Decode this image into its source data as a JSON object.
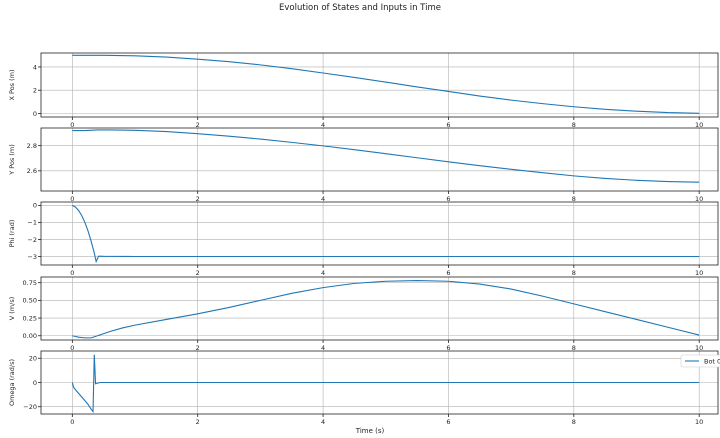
{
  "figure": {
    "title": "Evolution of States and Inputs in Time",
    "xlabel": "Time (s)",
    "legend_label": "Bot 0"
  },
  "chart_data": [
    {
      "type": "line",
      "ylabel": "X Pos (m)",
      "xlim": [
        -0.5,
        10.3
      ],
      "ylim": [
        -0.3,
        5.2
      ],
      "xticks": [
        0,
        2,
        4,
        6,
        8,
        10
      ],
      "yticks": [
        0,
        2,
        4
      ],
      "grid": true,
      "series": [
        {
          "name": "Bot 0",
          "color": "#1f77b4",
          "x": [
            0,
            0.5,
            1,
            1.5,
            2,
            2.5,
            3,
            3.5,
            4,
            4.5,
            5,
            5.5,
            6,
            6.5,
            7,
            7.5,
            8,
            8.5,
            9,
            9.5,
            10
          ],
          "y": [
            5.0,
            5.0,
            4.96,
            4.85,
            4.67,
            4.45,
            4.18,
            3.85,
            3.48,
            3.1,
            2.7,
            2.28,
            1.9,
            1.5,
            1.15,
            0.85,
            0.58,
            0.36,
            0.2,
            0.08,
            0.02
          ]
        }
      ]
    },
    {
      "type": "line",
      "ylabel": "Y Pos (m)",
      "xlim": [
        -0.5,
        10.3
      ],
      "ylim": [
        2.44,
        2.94
      ],
      "xticks": [
        0,
        2,
        4,
        6,
        8,
        10
      ],
      "yticks": [
        2.6,
        2.8
      ],
      "grid": true,
      "series": [
        {
          "name": "Bot 0",
          "color": "#1f77b4",
          "x": [
            0,
            0.2,
            0.4,
            0.6,
            1,
            1.5,
            2,
            2.5,
            3,
            3.5,
            4,
            4.5,
            5,
            5.5,
            6,
            6.5,
            7,
            7.5,
            8,
            8.5,
            9,
            9.5,
            10
          ],
          "y": [
            2.92,
            2.92,
            2.925,
            2.925,
            2.922,
            2.912,
            2.895,
            2.875,
            2.852,
            2.826,
            2.798,
            2.768,
            2.736,
            2.704,
            2.672,
            2.641,
            2.612,
            2.585,
            2.56,
            2.54,
            2.525,
            2.515,
            2.51
          ]
        }
      ]
    },
    {
      "type": "line",
      "ylabel": "Phi (rad)",
      "xlim": [
        -0.5,
        10.3
      ],
      "ylim": [
        -3.5,
        0.2
      ],
      "xticks": [
        0,
        2,
        4,
        6,
        8,
        10
      ],
      "yticks": [
        -3,
        -2,
        -1,
        0
      ],
      "grid": true,
      "series": [
        {
          "name": "Bot 0",
          "color": "#1f77b4",
          "x": [
            0,
            0.05,
            0.1,
            0.15,
            0.2,
            0.25,
            0.3,
            0.35,
            0.38,
            0.42,
            0.5,
            1,
            2,
            4,
            6,
            8,
            10
          ],
          "y": [
            0,
            -0.1,
            -0.3,
            -0.6,
            -1.0,
            -1.5,
            -2.1,
            -2.8,
            -3.3,
            -2.98,
            -2.99,
            -3.0,
            -3.0,
            -3.0,
            -3.0,
            -3.0,
            -3.0
          ]
        }
      ]
    },
    {
      "type": "line",
      "ylabel": "V (m/s)",
      "xlim": [
        -0.5,
        10.3
      ],
      "ylim": [
        -0.06,
        0.83
      ],
      "xticks": [
        0,
        2,
        4,
        6,
        8,
        10
      ],
      "yticks": [
        0.0,
        0.25,
        0.5,
        0.75
      ],
      "ytick_labels": [
        "0.00",
        "0.25",
        "0.50",
        "0.75"
      ],
      "grid": true,
      "series": [
        {
          "name": "Bot 0",
          "color": "#1f77b4",
          "x": [
            0,
            0.1,
            0.2,
            0.3,
            0.4,
            0.6,
            0.8,
            1,
            1.5,
            2,
            2.5,
            3,
            3.5,
            4,
            4.5,
            5,
            5.5,
            6,
            6.5,
            7,
            7.5,
            8,
            8.5,
            9,
            9.5,
            10
          ],
          "y": [
            0,
            -0.02,
            -0.03,
            -0.03,
            0.0,
            0.06,
            0.11,
            0.15,
            0.23,
            0.31,
            0.4,
            0.5,
            0.6,
            0.68,
            0.74,
            0.77,
            0.78,
            0.77,
            0.73,
            0.66,
            0.56,
            0.45,
            0.34,
            0.23,
            0.12,
            0.01
          ]
        }
      ]
    },
    {
      "type": "line",
      "ylabel": "Omega (rad/s)",
      "xlim": [
        -0.5,
        10.3
      ],
      "ylim": [
        -26,
        26
      ],
      "xticks": [
        0,
        2,
        4,
        6,
        8,
        10
      ],
      "yticks": [
        -20,
        0,
        20
      ],
      "grid": true,
      "legend": "right",
      "series": [
        {
          "name": "Bot 0",
          "color": "#1f77b4",
          "x": [
            0,
            0.02,
            0.05,
            0.1,
            0.15,
            0.2,
            0.25,
            0.3,
            0.33,
            0.35,
            0.37,
            0.4,
            0.45,
            0.5,
            1,
            2,
            4,
            6,
            8,
            10
          ],
          "y": [
            0,
            -4,
            -6,
            -9,
            -12,
            -15,
            -18,
            -22,
            -24,
            23,
            -1,
            -0.5,
            0,
            0,
            0,
            0,
            0,
            0,
            0,
            0
          ]
        }
      ]
    }
  ]
}
